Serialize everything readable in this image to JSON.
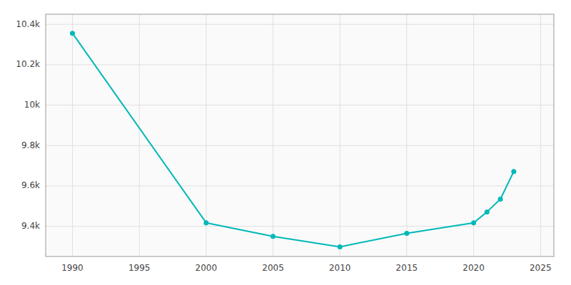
{
  "chart_data": {
    "type": "line",
    "x": [
      1990,
      2000,
      2005,
      2010,
      2015,
      2020,
      2021,
      2022,
      2023
    ],
    "values": [
      10356,
      9417,
      9350,
      9298,
      9365,
      9417,
      9471,
      9534,
      9671
    ],
    "color": "#00b8b8",
    "marker": "circle",
    "xlim": [
      1988,
      2026
    ],
    "ylim": [
      9250,
      10450
    ],
    "xticks": [
      1990,
      1995,
      2000,
      2005,
      2010,
      2015,
      2020,
      2025
    ],
    "yticks": [
      {
        "value": 9400,
        "label": "9.4k"
      },
      {
        "value": 9600,
        "label": "9.6k"
      },
      {
        "value": 9800,
        "label": "9.8k"
      },
      {
        "value": 10000,
        "label": "10k"
      },
      {
        "value": 10200,
        "label": "10.2k"
      },
      {
        "value": 10400,
        "label": "10.4k"
      }
    ],
    "grid": true
  }
}
